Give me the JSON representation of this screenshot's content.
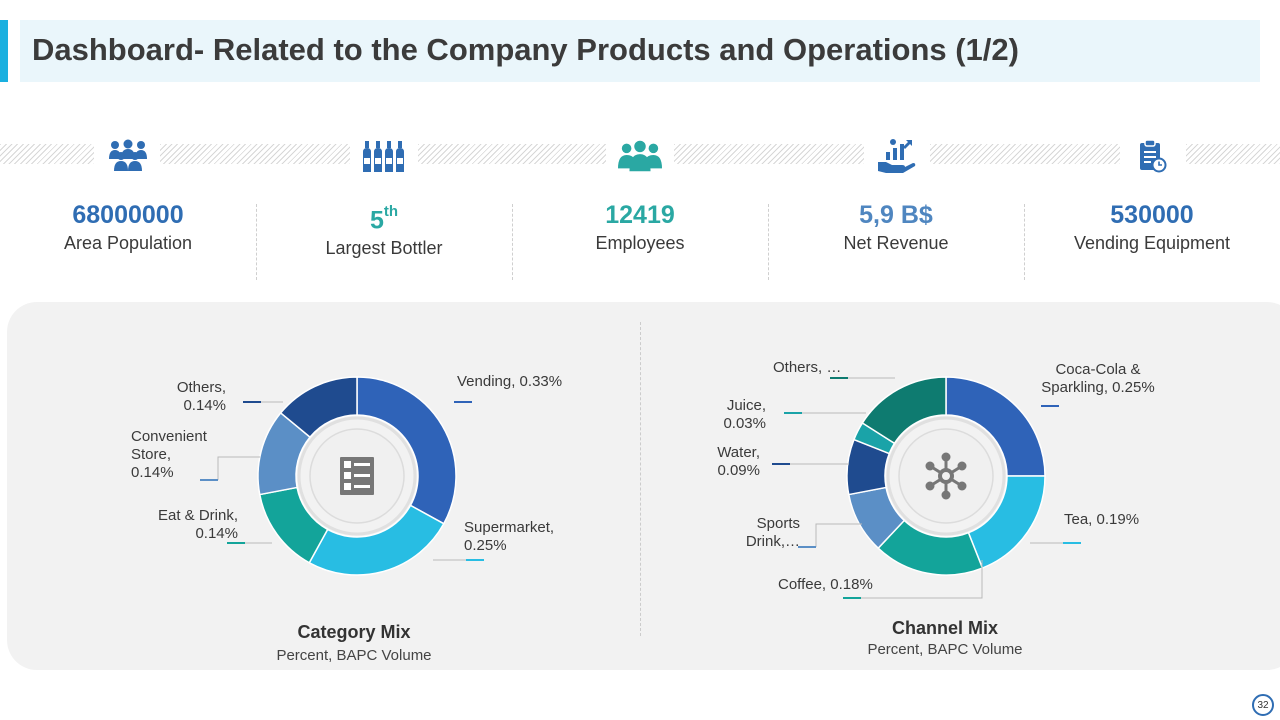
{
  "header": {
    "title": "Dashboard- Related to the Company Products and Operations (1/2)"
  },
  "kpis": [
    {
      "value": "68000000",
      "sup": "",
      "label": "Area Population",
      "icon": "people-group-icon"
    },
    {
      "value": "5",
      "sup": "th",
      "label": "Largest Bottler",
      "icon": "bottles-icon"
    },
    {
      "value": "12419",
      "sup": "",
      "label": "Employees",
      "icon": "team-icon"
    },
    {
      "value": "5,9 B$",
      "sup": "",
      "label": "Net Revenue",
      "icon": "revenue-hand-icon"
    },
    {
      "value": "530000",
      "sup": "",
      "label": "Vending Equipment",
      "icon": "clipboard-clock-icon"
    }
  ],
  "colors": {
    "accent": "#1ab0e0",
    "kpi_blue": "#2f6db3",
    "kpi_teal": "#2aa8a3",
    "panel": "#f2f2f2"
  },
  "chart_data": [
    {
      "type": "pie",
      "variant": "donut",
      "title": "Category Mix",
      "subtitle": "Percent, BAPC Volume",
      "center_icon": "checklist-icon",
      "slices": [
        {
          "name": "Vending",
          "label": "Vending, 0.33%",
          "value": 0.33,
          "color": "#2f63b8"
        },
        {
          "name": "Supermarket",
          "label": "Supermarket, 0.25%",
          "value": 0.25,
          "color": "#28bde3"
        },
        {
          "name": "Eat & Drink",
          "label": "Eat & Drink, 0.14%",
          "value": 0.14,
          "color": "#13a49a"
        },
        {
          "name": "Convenient Store",
          "label": "Convenient Store, 0.14%",
          "value": 0.14,
          "color": "#5b8fc6"
        },
        {
          "name": "Others",
          "label": "Others, 0.14%",
          "value": 0.14,
          "color": "#1f4b8f"
        }
      ]
    },
    {
      "type": "pie",
      "variant": "donut",
      "title": "Channel Mix",
      "subtitle": "Percent, BAPC Volume",
      "center_icon": "network-hub-icon",
      "slices": [
        {
          "name": "Coca-Cola & Sparkling",
          "label": "Coca-Cola & Sparkling, 0.25%",
          "value": 0.25,
          "color": "#2f63b8"
        },
        {
          "name": "Tea",
          "label": "Tea, 0.19%",
          "value": 0.19,
          "color": "#28bde3"
        },
        {
          "name": "Coffee",
          "label": "Coffee, 0.18%",
          "value": 0.18,
          "color": "#13a49a"
        },
        {
          "name": "Sports Drink",
          "label": "Sports Drink,…",
          "value": 0.1,
          "color": "#5b8fc6"
        },
        {
          "name": "Water",
          "label": "Water, 0.09%",
          "value": 0.09,
          "color": "#1f4b8f"
        },
        {
          "name": "Juice",
          "label": "Juice, 0.03%",
          "value": 0.03,
          "color": "#1aa3a8"
        },
        {
          "name": "Others",
          "label": "Others, …",
          "value": 0.16,
          "color": "#0e7b70"
        }
      ]
    }
  ],
  "footer": {
    "page_number": "32"
  }
}
